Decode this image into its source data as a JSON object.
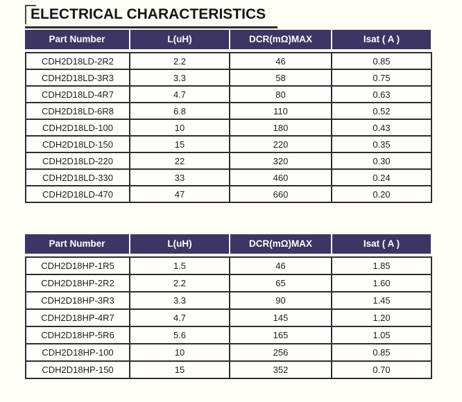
{
  "title": "ELECTRICAL CHARACTERISTICS",
  "colors": {
    "header_bg": "#3d3564",
    "header_text": "#ffffff",
    "grid_border": "#2d2d2d",
    "page_bg": "#fffdf5",
    "title_text": "#151515"
  },
  "tables": [
    {
      "columns": [
        "Part Number",
        "L(uH)",
        "DCR(mΩ)MAX",
        "Isat ( A )"
      ],
      "rows": [
        [
          "CDH2D18LD-2R2",
          "2.2",
          "46",
          "0.85"
        ],
        [
          "CDH2D18LD-3R3",
          "3.3",
          "58",
          "0.75"
        ],
        [
          "CDH2D18LD-4R7",
          "4.7",
          "80",
          "0.63"
        ],
        [
          "CDH2D18LD-6R8",
          "6.8",
          "110",
          "0.52"
        ],
        [
          "CDH2D18LD-100",
          "10",
          "180",
          "0.43"
        ],
        [
          "CDH2D18LD-150",
          "15",
          "220",
          "0.35"
        ],
        [
          "CDH2D18LD-220",
          "22",
          "320",
          "0.30"
        ],
        [
          "CDH2D18LD-330",
          "33",
          "460",
          "0.24"
        ],
        [
          "CDH2D18LD-470",
          "47",
          "660",
          "0.20"
        ]
      ]
    },
    {
      "columns": [
        "Part Number",
        "L(uH)",
        "DCR(mΩ)MAX",
        "Isat ( A )"
      ],
      "rows": [
        [
          "CDH2D18HP-1R5",
          "1.5",
          "46",
          "1.85"
        ],
        [
          "CDH2D18HP-2R2",
          "2.2",
          "65",
          "1.60"
        ],
        [
          "CDH2D18HP-3R3",
          "3.3",
          "90",
          "1.45"
        ],
        [
          "CDH2D18HP-4R7",
          "4.7",
          "145",
          "1.20"
        ],
        [
          "CDH2D18HP-5R6",
          "5.6",
          "165",
          "1.05"
        ],
        [
          "CDH2D18HP-100",
          "10",
          "256",
          "0.85"
        ],
        [
          "CDH2D18HP-150",
          "15",
          "352",
          "0.70"
        ]
      ]
    }
  ]
}
